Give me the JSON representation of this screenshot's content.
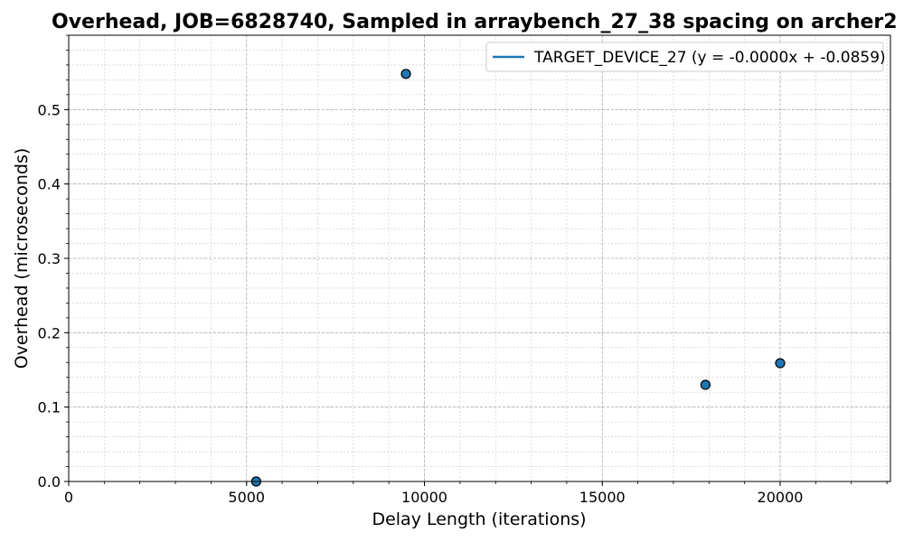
{
  "chart_data": {
    "type": "scatter",
    "title": "Overhead, JOB=6828740, Sampled in arraybench_27_38 spacing on archer2",
    "xlabel": "Delay Length (iterations)",
    "ylabel": "Overhead (microseconds)",
    "xlim": [
      0,
      23100
    ],
    "ylim": [
      0,
      0.6
    ],
    "x_ticks": [
      0,
      5000,
      10000,
      15000,
      20000
    ],
    "x_tick_labels": [
      "0",
      "5000",
      "10000",
      "15000",
      "20000"
    ],
    "y_ticks": [
      0.0,
      0.1,
      0.2,
      0.3,
      0.4,
      0.5
    ],
    "y_tick_labels": [
      "0.0",
      "0.1",
      "0.2",
      "0.3",
      "0.4",
      "0.5"
    ],
    "grid": true,
    "legend_position": "top-right",
    "series": [
      {
        "name": "TARGET_DEVICE_27 (y = -0.0000x + -0.0859)",
        "color": "#1f77b4",
        "fit": {
          "slope": 0.0,
          "intercept": -0.0859
        },
        "points": [
          {
            "x": 5270,
            "y": 0.0
          },
          {
            "x": 9480,
            "y": 0.548
          },
          {
            "x": 17900,
            "y": 0.13
          },
          {
            "x": 20000,
            "y": 0.159
          }
        ]
      }
    ]
  }
}
